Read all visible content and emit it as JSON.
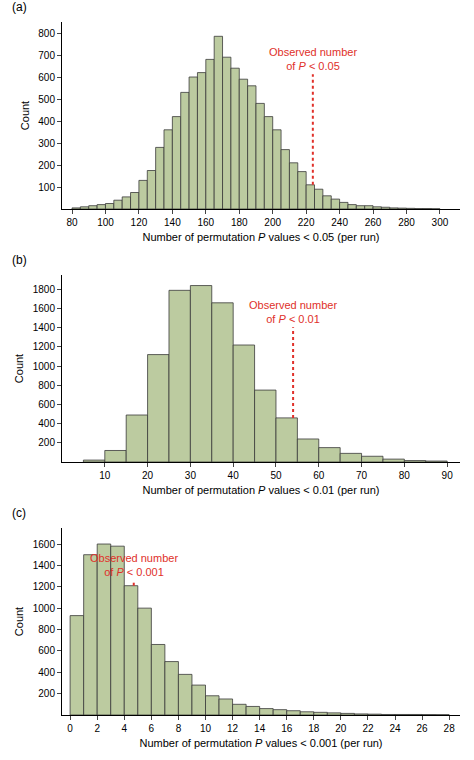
{
  "chart_data": [
    {
      "type": "histogram",
      "label": "(a)",
      "x_label": "Number of permutation P values < 0.05 (per run)",
      "y_label": "Count",
      "bins": [
        80,
        85,
        90,
        95,
        100,
        105,
        110,
        115,
        120,
        125,
        130,
        135,
        140,
        145,
        150,
        155,
        160,
        165,
        170,
        175,
        180,
        185,
        190,
        195,
        200,
        205,
        210,
        215,
        220,
        225,
        230,
        235,
        240,
        245,
        250,
        255,
        260,
        265,
        270,
        275,
        280,
        285,
        290,
        295,
        300
      ],
      "values": [
        5,
        10,
        15,
        20,
        25,
        40,
        55,
        75,
        130,
        175,
        280,
        360,
        420,
        530,
        600,
        620,
        680,
        785,
        690,
        640,
        590,
        560,
        480,
        420,
        360,
        270,
        210,
        170,
        110,
        90,
        60,
        45,
        30,
        20,
        15,
        15,
        10,
        8,
        5,
        4,
        3,
        2,
        2,
        1
      ],
      "color": "#bccba0",
      "xlim": [
        74,
        312
      ],
      "xticks": [
        80,
        100,
        120,
        140,
        160,
        180,
        200,
        220,
        240,
        260,
        280,
        300
      ],
      "ylim": [
        0,
        850
      ],
      "yticks": [
        100,
        200,
        300,
        400,
        500,
        600,
        700,
        800
      ],
      "annotations": [
        {
          "x": 224,
          "text_lines": [
            "Observed number",
            "of P < 0.05"
          ],
          "color": "#e0302a"
        }
      ]
    },
    {
      "type": "histogram",
      "label": "(b)",
      "x_label": "Number of permutation P values < 0.01 (per run)",
      "y_label": "Count",
      "bins": [
        5,
        10,
        15,
        20,
        25,
        30,
        35,
        40,
        45,
        50,
        55,
        60,
        65,
        70,
        75,
        80,
        85,
        90
      ],
      "values": [
        20,
        120,
        490,
        1120,
        1790,
        1840,
        1660,
        1220,
        750,
        460,
        240,
        150,
        90,
        60,
        30,
        15,
        10
      ],
      "color": "#bccba0",
      "xlim": [
        0,
        93
      ],
      "xticks": [
        10,
        20,
        30,
        40,
        50,
        60,
        70,
        80,
        90
      ],
      "ylim": [
        0,
        1950
      ],
      "yticks": [
        200,
        400,
        600,
        800,
        1000,
        1200,
        1400,
        1600,
        1800
      ],
      "annotations": [
        {
          "x": 54,
          "text_lines": [
            "Observed number",
            "of P < 0.01"
          ],
          "color": "#e0302a"
        }
      ]
    },
    {
      "type": "histogram",
      "label": "(c)",
      "x_label": "Number of permutation P values < 0.001 (per run)",
      "y_label": "Count",
      "bins": [
        0,
        1,
        2,
        3,
        4,
        5,
        6,
        7,
        8,
        9,
        10,
        11,
        12,
        13,
        14,
        15,
        16,
        17,
        18,
        19,
        20,
        21,
        22,
        23,
        24,
        25,
        26,
        27,
        28
      ],
      "values": [
        930,
        1500,
        1600,
        1580,
        1210,
        1000,
        660,
        500,
        380,
        280,
        180,
        150,
        100,
        80,
        60,
        50,
        40,
        30,
        25,
        20,
        15,
        10,
        8,
        5,
        5,
        5,
        4,
        3
      ],
      "color": "#bccba0",
      "xlim": [
        -0.6,
        28.8
      ],
      "xticks": [
        0,
        2,
        4,
        6,
        8,
        10,
        12,
        14,
        16,
        18,
        20,
        22,
        24,
        26,
        28
      ],
      "ylim": [
        0,
        1750
      ],
      "yticks": [
        200,
        400,
        600,
        800,
        1000,
        1200,
        1400,
        1600
      ],
      "annotations": [
        {
          "x": 4.7,
          "text_lines": [
            "Observed number",
            "of P < 0.001"
          ],
          "color": "#e0302a"
        }
      ]
    }
  ]
}
